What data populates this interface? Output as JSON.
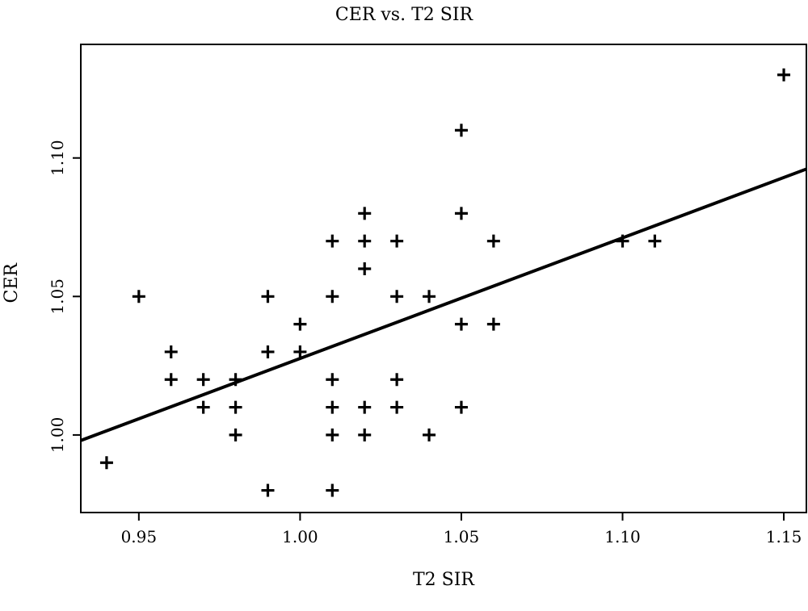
{
  "chart_data": {
    "type": "scatter",
    "title": "CER vs. T2 SIR",
    "xlabel": "T2 SIR",
    "ylabel": "CER",
    "xlim": [
      0.932,
      1.157
    ],
    "ylim": [
      0.972,
      1.141
    ],
    "x_ticks": [
      "0.95",
      "1.00",
      "1.05",
      "1.10",
      "1.15"
    ],
    "y_ticks": [
      "1.00",
      "1.05",
      "1.10"
    ],
    "x_tick_values": [
      0.95,
      1.0,
      1.05,
      1.1,
      1.15
    ],
    "y_tick_values": [
      1.0,
      1.05,
      1.1
    ],
    "grid": false,
    "marker": "plus",
    "points": [
      {
        "x": 0.94,
        "y": 0.99
      },
      {
        "x": 0.95,
        "y": 1.05
      },
      {
        "x": 0.96,
        "y": 1.03
      },
      {
        "x": 0.96,
        "y": 1.02
      },
      {
        "x": 0.97,
        "y": 1.02
      },
      {
        "x": 0.97,
        "y": 1.01
      },
      {
        "x": 0.98,
        "y": 1.02
      },
      {
        "x": 0.98,
        "y": 1.01
      },
      {
        "x": 0.98,
        "y": 1.0
      },
      {
        "x": 0.99,
        "y": 1.05
      },
      {
        "x": 0.99,
        "y": 1.03
      },
      {
        "x": 0.99,
        "y": 0.98
      },
      {
        "x": 1.0,
        "y": 1.04
      },
      {
        "x": 1.0,
        "y": 1.03
      },
      {
        "x": 1.01,
        "y": 1.07
      },
      {
        "x": 1.01,
        "y": 1.05
      },
      {
        "x": 1.01,
        "y": 1.02
      },
      {
        "x": 1.01,
        "y": 1.01
      },
      {
        "x": 1.01,
        "y": 1.0
      },
      {
        "x": 1.01,
        "y": 0.98
      },
      {
        "x": 1.02,
        "y": 1.08
      },
      {
        "x": 1.02,
        "y": 1.07
      },
      {
        "x": 1.02,
        "y": 1.06
      },
      {
        "x": 1.02,
        "y": 1.01
      },
      {
        "x": 1.02,
        "y": 1.0
      },
      {
        "x": 1.03,
        "y": 1.07
      },
      {
        "x": 1.03,
        "y": 1.05
      },
      {
        "x": 1.03,
        "y": 1.02
      },
      {
        "x": 1.03,
        "y": 1.01
      },
      {
        "x": 1.04,
        "y": 1.05
      },
      {
        "x": 1.04,
        "y": 1.0
      },
      {
        "x": 1.05,
        "y": 1.11
      },
      {
        "x": 1.05,
        "y": 1.08
      },
      {
        "x": 1.05,
        "y": 1.04
      },
      {
        "x": 1.05,
        "y": 1.01
      },
      {
        "x": 1.06,
        "y": 1.07
      },
      {
        "x": 1.06,
        "y": 1.04
      },
      {
        "x": 1.1,
        "y": 1.07
      },
      {
        "x": 1.11,
        "y": 1.07
      },
      {
        "x": 1.15,
        "y": 1.13
      }
    ],
    "fit_line": {
      "x": [
        0.932,
        1.157
      ],
      "y": [
        0.998,
        1.096
      ]
    }
  }
}
